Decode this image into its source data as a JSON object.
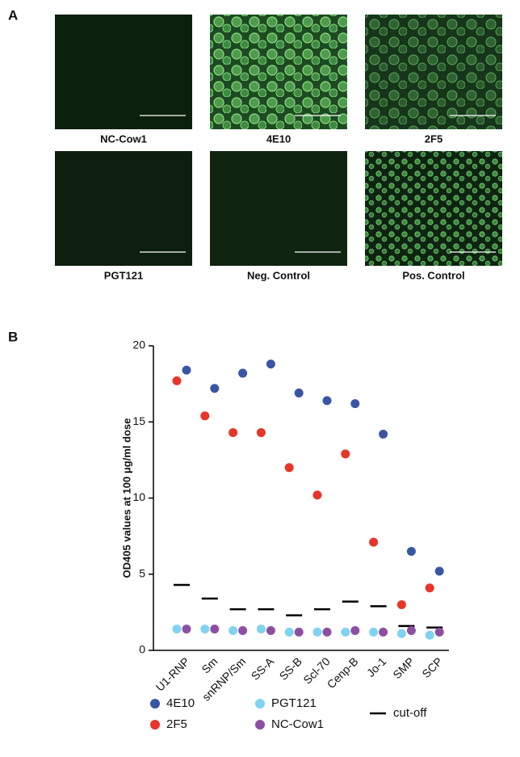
{
  "panel_a": {
    "label": "A",
    "images": [
      {
        "label": "NC-Cow1"
      },
      {
        "label": "4E10"
      },
      {
        "label": "2F5"
      },
      {
        "label": "PGT121"
      },
      {
        "label": "Neg. Control"
      },
      {
        "label": "Pos. Control"
      }
    ]
  },
  "chart_data": {
    "type": "scatter",
    "panel_label": "B",
    "y_label": "OD405 values at 100 μg/ml dose",
    "categories": [
      "U1-RNP",
      "Sm",
      "snRNP/Sm",
      "SS-A",
      "SS-B",
      "Scl-70",
      "Cenp-B",
      "Jo-1",
      "SMP",
      "SCP"
    ],
    "series": [
      {
        "name": "4E10",
        "color": "#3a55a4",
        "values": [
          18.4,
          17.2,
          18.2,
          18.8,
          16.9,
          16.4,
          16.2,
          14.2,
          6.5,
          5.2
        ]
      },
      {
        "name": "2F5",
        "color": "#e8352a",
        "values": [
          17.7,
          15.4,
          14.3,
          14.3,
          12.0,
          10.2,
          12.9,
          7.1,
          3.0,
          4.1
        ]
      },
      {
        "name": "PGT121",
        "color": "#7fd3f0",
        "values": [
          1.4,
          1.4,
          1.3,
          1.4,
          1.2,
          1.2,
          1.2,
          1.2,
          1.1,
          1.0
        ]
      },
      {
        "name": "NC-Cow1",
        "color": "#8e4fa3",
        "values": [
          1.4,
          1.4,
          1.3,
          1.3,
          1.2,
          1.2,
          1.3,
          1.2,
          1.3,
          1.2
        ]
      }
    ],
    "cutoff": {
      "name": "cut-off",
      "color": "#000000",
      "values": [
        4.3,
        3.4,
        2.7,
        2.7,
        2.3,
        2.7,
        3.2,
        2.9,
        1.6,
        1.5
      ]
    },
    "ylim": [
      0,
      20
    ],
    "yticks": [
      0,
      5,
      10,
      15,
      20
    ]
  }
}
